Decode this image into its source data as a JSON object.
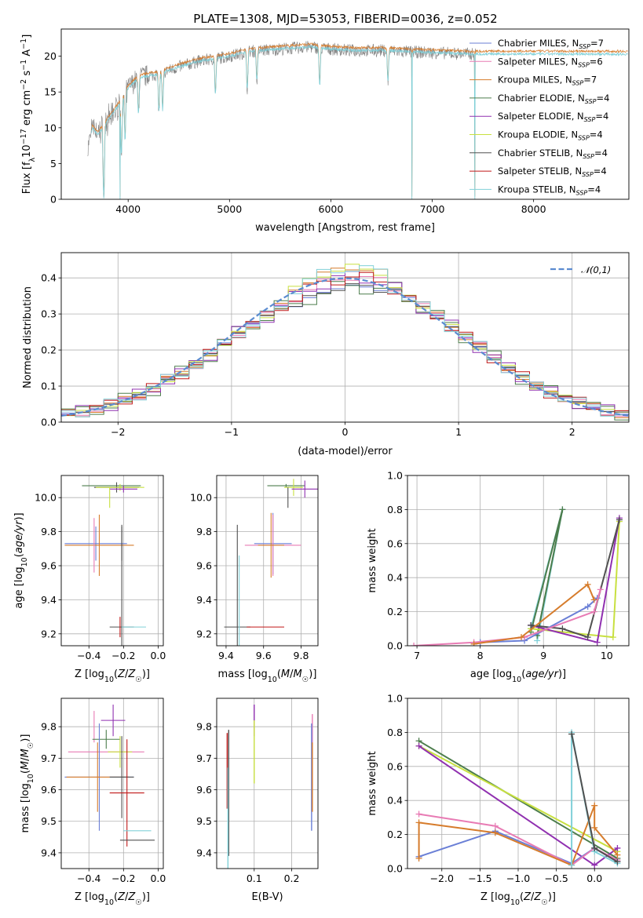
{
  "figure": {
    "title": "PLATE=1308, MJD=53053, FIBERID=0036, z=0.052",
    "model_legend": [
      {
        "label": "Chabrier MILES, N_SSP=7",
        "main": "Chabrier MILES, N",
        "sub": "SSP",
        "tail": "=7",
        "color": "#6a7fd6"
      },
      {
        "label": "Salpeter MILES, N_SSP=6",
        "main": "Salpeter MILES, N",
        "sub": "SSP",
        "tail": "=6",
        "color": "#e87bb4"
      },
      {
        "label": "Kroupa MILES, N_SSP=7",
        "main": "Kroupa MILES, N",
        "sub": "SSP",
        "tail": "=7",
        "color": "#d67c2c"
      },
      {
        "label": "Chabrier ELODIE, N_SSP=4",
        "main": "Chabrier ELODIE, N",
        "sub": "SSP",
        "tail": "=4",
        "color": "#4c7d4c"
      },
      {
        "label": "Salpeter ELODIE, N_SSP=4",
        "main": "Salpeter ELODIE, N",
        "sub": "SSP",
        "tail": "=4",
        "color": "#9030b0"
      },
      {
        "label": "Kroupa ELODIE, N_SSP=4",
        "main": "Kroupa ELODIE, N",
        "sub": "SSP",
        "tail": "=4",
        "color": "#c8e040"
      },
      {
        "label": "Chabrier STELIB, N_SSP=4",
        "main": "Chabrier STELIB, N",
        "sub": "SSP",
        "tail": "=4",
        "color": "#505050"
      },
      {
        "label": "Salpeter STELIB, N_SSP=4",
        "main": "Salpeter STELIB, N",
        "sub": "SSP",
        "tail": "=4",
        "color": "#c01818"
      },
      {
        "label": "Kroupa STELIB, N_SSP=4",
        "main": "Kroupa STELIB, N",
        "sub": "SSP",
        "tail": "=4",
        "color": "#80d0d8"
      }
    ]
  },
  "chart_data": [
    {
      "id": "spectrum",
      "type": "line",
      "xlabel": "wavelength [Angstrom, rest frame]",
      "ylabel": "Flux [f_λ 10^-17 erg cm^-2 s^-1 A^-1]",
      "xlim": [
        3340,
        8940
      ],
      "ylim": [
        0,
        23.8
      ],
      "xticks": [
        4000,
        5000,
        6000,
        7000,
        8000
      ],
      "yticks": [
        0,
        5,
        10,
        15,
        20
      ],
      "grid": false,
      "legend_position": "top-right",
      "observed_color": "#808080",
      "model_color": "#80d0d8",
      "spectrum_anchors": {
        "x": [
          3600,
          3650,
          3700,
          3800,
          3900,
          4000,
          4100,
          4300,
          4500,
          4700,
          5000,
          5200,
          5500,
          5800,
          6000,
          6200,
          6500,
          6800,
          7000,
          7200,
          7400
        ],
        "y": [
          7,
          10,
          9,
          11,
          13,
          15.5,
          17,
          17.5,
          18.5,
          19.3,
          20,
          20.7,
          21,
          21.3,
          21,
          20.8,
          20.8,
          20.6,
          20.5,
          20.4,
          20.3
        ]
      },
      "model_extent": [
        3640,
        8930
      ],
      "dips": [
        {
          "x": 3760,
          "depth": 1.0
        },
        {
          "x": 3934,
          "depth": 0.55
        },
        {
          "x": 3970,
          "depth": 0.45
        },
        {
          "x": 4101,
          "depth": 0.3
        },
        {
          "x": 4304,
          "depth": 0.3
        },
        {
          "x": 4340,
          "depth": 0.3
        },
        {
          "x": 4861,
          "depth": 0.25
        },
        {
          "x": 5175,
          "depth": 0.25
        },
        {
          "x": 5270,
          "depth": 0.2
        },
        {
          "x": 5890,
          "depth": 0.25
        },
        {
          "x": 6563,
          "depth": 0.2
        }
      ],
      "drops": [
        {
          "x": 3920,
          "model": 5
        },
        {
          "x": 6800,
          "model": 5
        },
        {
          "x": 7420,
          "model": 6
        }
      ]
    },
    {
      "id": "residual_hist",
      "type": "bar",
      "xlabel": "(data-model)/error",
      "ylabel": "Normed distribution",
      "xlim": [
        -2.5,
        2.5
      ],
      "ylim": [
        0,
        0.47
      ],
      "xticks": [
        -2,
        -1,
        0,
        1,
        2
      ],
      "yticks": [
        0.0,
        0.1,
        0.2,
        0.3,
        0.4
      ],
      "grid": true,
      "bin_edges_start": -2.5,
      "bin_width": 0.125,
      "n_bins": 40,
      "gaussian": {
        "mu": 0,
        "sigma": 1,
        "label": "𝒩(0,1)",
        "color": "#5b8bd0",
        "legend_position": "top-right"
      },
      "values": [
        0.025,
        0.028,
        0.037,
        0.05,
        0.062,
        0.075,
        0.093,
        0.12,
        0.135,
        0.16,
        0.187,
        0.22,
        0.248,
        0.272,
        0.295,
        0.32,
        0.345,
        0.37,
        0.385,
        0.395,
        0.405,
        0.4,
        0.39,
        0.37,
        0.345,
        0.32,
        0.295,
        0.265,
        0.238,
        0.21,
        0.178,
        0.15,
        0.125,
        0.1,
        0.082,
        0.067,
        0.055,
        0.042,
        0.03,
        0.022
      ]
    },
    {
      "id": "age_vs_Z",
      "type": "scatter",
      "xlabel": "Z [log10(Z/Z☉)]",
      "ylabel": "age [log10(age/yr)]",
      "xlim": [
        -0.56,
        0.03
      ],
      "ylim": [
        9.13,
        10.13
      ],
      "xticks": [
        -0.4,
        -0.2,
        0.0
      ],
      "yticks": [
        9.2,
        9.4,
        9.6,
        9.8,
        10.0
      ],
      "grid": true,
      "points": [
        {
          "x": -0.27,
          "y": 10.07,
          "xerr": 0.17,
          "yerr": 0.0,
          "c": 3
        },
        {
          "x": -0.24,
          "y": 10.06,
          "xerr": 0.13,
          "yerr": 0.03,
          "c": 6
        },
        {
          "x": -0.22,
          "y": 10.06,
          "xerr": 0.14,
          "yerr": 0.02,
          "c": 5
        },
        {
          "x": -0.2,
          "y": 10.05,
          "xerr": 0.08,
          "yerr": 0.02,
          "c": 4
        },
        {
          "x": -0.28,
          "y": 10.0,
          "xerr": 0.0,
          "yerr": 0.06,
          "c": 5
        },
        {
          "x": -0.36,
          "y": 9.73,
          "xerr": 0.18,
          "yerr": 0.1,
          "c": 0
        },
        {
          "x": -0.34,
          "y": 9.72,
          "xerr": 0.2,
          "yerr": 0.18,
          "c": 2
        },
        {
          "x": -0.37,
          "y": 9.72,
          "xerr": 0.0,
          "yerr": 0.16,
          "c": 1
        },
        {
          "x": -0.21,
          "y": 9.73,
          "xerr": 0.0,
          "yerr": 0.1,
          "c": 6
        },
        {
          "x": -0.21,
          "y": 9.24,
          "xerr": 0.07,
          "yerr": 0.6,
          "c": 6
        },
        {
          "x": -0.22,
          "y": 9.24,
          "xerr": 0.0,
          "yerr": 0.06,
          "c": 7
        },
        {
          "x": -0.14,
          "y": 9.24,
          "xerr": 0.07,
          "yerr": 0.0,
          "c": 8
        }
      ]
    },
    {
      "id": "age_vs_mass",
      "type": "scatter",
      "xlabel": "mass [log10(M/M☉)]",
      "ylabel": "",
      "xlim": [
        9.35,
        9.89
      ],
      "ylim": [
        9.13,
        10.13
      ],
      "xticks": [
        9.4,
        9.6,
        9.8
      ],
      "yticks": [
        9.2,
        9.4,
        9.6,
        9.8,
        10.0
      ],
      "grid": true,
      "points": [
        {
          "x": 9.72,
          "y": 10.07,
          "xerr": 0.1,
          "yerr": 0.01,
          "c": 3
        },
        {
          "x": 9.76,
          "y": 10.06,
          "xerr": 0.05,
          "yerr": 0.05,
          "c": 5
        },
        {
          "x": 9.82,
          "y": 10.05,
          "xerr": 0.07,
          "yerr": 0.05,
          "c": 4
        },
        {
          "x": 9.73,
          "y": 10.0,
          "xerr": 0.0,
          "yerr": 0.06,
          "c": 6
        },
        {
          "x": 9.65,
          "y": 9.73,
          "xerr": 0.1,
          "yerr": 0.18,
          "c": 0
        },
        {
          "x": 9.65,
          "y": 9.72,
          "xerr": 0.15,
          "yerr": 0.18,
          "c": 1
        },
        {
          "x": 9.64,
          "y": 9.72,
          "xerr": 0.07,
          "yerr": 0.19,
          "c": 2
        },
        {
          "x": 9.46,
          "y": 9.24,
          "xerr": 0.07,
          "yerr": 0.6,
          "c": 6
        },
        {
          "x": 9.61,
          "y": 9.24,
          "xerr": 0.1,
          "yerr": 0.0,
          "c": 7
        },
        {
          "x": 9.47,
          "y": 9.24,
          "xerr": 0.0,
          "yerr": 0.42,
          "c": 8
        }
      ]
    },
    {
      "id": "weight_vs_age",
      "type": "line",
      "xlabel": "age [log10(age/yr)]",
      "ylabel": "mass weight",
      "xlim": [
        6.85,
        10.35
      ],
      "ylim": [
        0,
        1
      ],
      "xticks": [
        7,
        8,
        9,
        10
      ],
      "yticks": [
        0.0,
        0.2,
        0.4,
        0.6,
        0.8,
        1.0
      ],
      "grid": true,
      "series": [
        {
          "c": 8,
          "x": [
            8.9,
            9.3,
            8.8
          ],
          "y": [
            0.03,
            0.8,
            0.1
          ]
        },
        {
          "c": 3,
          "x": [
            8.9,
            9.3,
            8.8
          ],
          "y": [
            0.06,
            0.8,
            0.08
          ]
        },
        {
          "c": 5,
          "x": [
            8.8,
            10.1,
            10.2
          ],
          "y": [
            0.1,
            0.05,
            0.73
          ]
        },
        {
          "c": 4,
          "x": [
            8.8,
            9.85,
            10.2
          ],
          "y": [
            0.12,
            0.02,
            0.75
          ]
        },
        {
          "c": 6,
          "x": [
            8.8,
            9.3,
            9.7,
            10.2
          ],
          "y": [
            0.12,
            0.1,
            0.05,
            0.74
          ]
        },
        {
          "c": 0,
          "x": [
            8.0,
            8.7,
            9.7,
            9.85
          ],
          "y": [
            0.02,
            0.03,
            0.23,
            0.28
          ]
        },
        {
          "c": 1,
          "x": [
            6.95,
            7.9,
            8.7,
            9.8,
            9.9
          ],
          "y": [
            0.0,
            0.02,
            0.05,
            0.2,
            0.33
          ]
        },
        {
          "c": 2,
          "x": [
            7.9,
            8.65,
            9.7,
            9.8
          ],
          "y": [
            0.01,
            0.05,
            0.36,
            0.27
          ]
        }
      ]
    },
    {
      "id": "mass_vs_Z",
      "type": "scatter",
      "xlabel": "Z [log10(Z/Z☉)]",
      "ylabel": "mass [log10(M/M☉)]",
      "xlim": [
        -0.56,
        0.03
      ],
      "ylim": [
        9.35,
        9.89
      ],
      "xticks": [
        -0.4,
        -0.2,
        0.0
      ],
      "yticks": [
        9.4,
        9.5,
        9.6,
        9.7,
        9.8
      ],
      "grid": true,
      "points": [
        {
          "x": -0.26,
          "y": 9.82,
          "xerr": 0.07,
          "yerr": 0.05,
          "c": 4
        },
        {
          "x": -0.37,
          "y": 9.8,
          "xerr": 0.0,
          "yerr": 0.05,
          "c": 1
        },
        {
          "x": -0.3,
          "y": 9.76,
          "xerr": 0.08,
          "yerr": 0.03,
          "c": 3
        },
        {
          "x": -0.3,
          "y": 9.72,
          "xerr": 0.22,
          "yerr": 0.0,
          "c": 1
        },
        {
          "x": -0.22,
          "y": 9.72,
          "xerr": 0.07,
          "yerr": 0.05,
          "c": 5
        },
        {
          "x": -0.34,
          "y": 9.64,
          "xerr": 0.2,
          "yerr": 0.17,
          "c": 0
        },
        {
          "x": -0.35,
          "y": 9.64,
          "xerr": 0.18,
          "yerr": 0.11,
          "c": 2
        },
        {
          "x": -0.21,
          "y": 9.64,
          "xerr": 0.07,
          "yerr": 0.13,
          "c": 6
        },
        {
          "x": -0.18,
          "y": 9.59,
          "xerr": 0.1,
          "yerr": 0.17,
          "c": 7
        },
        {
          "x": -0.12,
          "y": 9.47,
          "xerr": 0.08,
          "yerr": 0.0,
          "c": 8
        },
        {
          "x": -0.12,
          "y": 9.44,
          "xerr": 0.1,
          "yerr": 0.0,
          "c": 6
        }
      ]
    },
    {
      "id": "mass_vs_ebv",
      "type": "scatter",
      "xlabel": "E(B-V)",
      "ylabel": "",
      "xlim": [
        0.0,
        0.27
      ],
      "ylim": [
        9.35,
        9.89
      ],
      "xticks": [
        0.1,
        0.2
      ],
      "yticks": [
        9.4,
        9.5,
        9.6,
        9.7,
        9.8
      ],
      "grid": true,
      "points": [
        {
          "x": 0.028,
          "y": 9.66,
          "xerr": 0.0,
          "yerr": 0.12,
          "c": 7
        },
        {
          "x": 0.032,
          "y": 9.59,
          "xerr": 0.0,
          "yerr": 0.2,
          "c": 6
        },
        {
          "x": 0.03,
          "y": 9.47,
          "xerr": 0.0,
          "yerr": 0.2,
          "c": 8
        },
        {
          "x": 0.1,
          "y": 9.82,
          "xerr": 0.0,
          "yerr": 0.05,
          "c": 4
        },
        {
          "x": 0.1,
          "y": 9.72,
          "xerr": 0.0,
          "yerr": 0.1,
          "c": 5
        },
        {
          "x": 0.255,
          "y": 9.72,
          "xerr": 0.0,
          "yerr": 0.12,
          "c": 1
        },
        {
          "x": 0.253,
          "y": 9.64,
          "xerr": 0.0,
          "yerr": 0.17,
          "c": 0
        },
        {
          "x": 0.255,
          "y": 9.64,
          "xerr": 0.0,
          "yerr": 0.11,
          "c": 2
        }
      ]
    },
    {
      "id": "weight_vs_Z",
      "type": "line",
      "xlabel": "Z [log10(Z/Z☉)]",
      "ylabel": "mass weight",
      "xlim": [
        -2.45,
        0.45
      ],
      "ylim": [
        0,
        1
      ],
      "xticks": [
        -2.0,
        -1.5,
        -1.0,
        -0.5,
        0.0
      ],
      "yticks": [
        0.0,
        0.2,
        0.4,
        0.6,
        0.8,
        1.0
      ],
      "grid": true,
      "series": [
        {
          "c": 3,
          "x": [
            -2.3,
            0.3
          ],
          "y": [
            0.75,
            0.06
          ]
        },
        {
          "c": 5,
          "x": [
            -2.3,
            0.3
          ],
          "y": [
            0.72,
            0.1
          ]
        },
        {
          "c": 4,
          "x": [
            -2.3,
            0.0,
            0.3
          ],
          "y": [
            0.72,
            0.02,
            0.12
          ]
        },
        {
          "c": 0,
          "x": [
            -2.3,
            -1.3,
            -0.3,
            0.0,
            0.3
          ],
          "y": [
            0.07,
            0.22,
            0.03,
            0.12,
            0.04
          ]
        },
        {
          "c": 1,
          "x": [
            -2.3,
            -1.3,
            -0.3,
            0.0,
            0.3
          ],
          "y": [
            0.32,
            0.25,
            0.02,
            0.12,
            0.05
          ]
        },
        {
          "c": 2,
          "x": [
            -2.3,
            -2.3,
            -1.3,
            -0.3,
            0.0,
            0.0,
            0.3
          ],
          "y": [
            0.06,
            0.27,
            0.21,
            0.02,
            0.37,
            0.24,
            0.08
          ]
        },
        {
          "c": 8,
          "x": [
            -0.3,
            -0.3,
            0.0,
            0.3
          ],
          "y": [
            0.02,
            0.8,
            0.1,
            0.03
          ]
        },
        {
          "c": 6,
          "x": [
            -0.3,
            0.0,
            0.3
          ],
          "y": [
            0.79,
            0.12,
            0.04
          ]
        }
      ]
    }
  ]
}
